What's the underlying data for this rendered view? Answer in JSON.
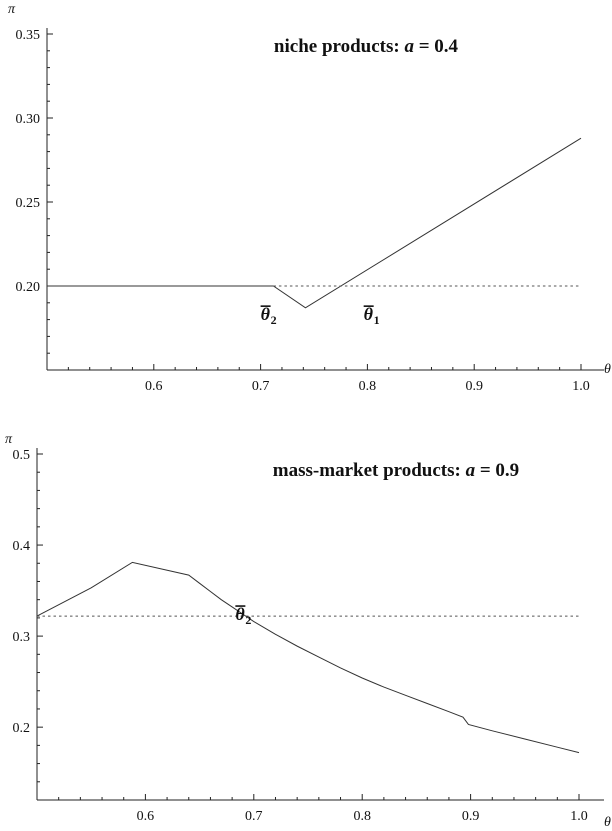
{
  "chart_data": [
    {
      "type": "line",
      "title": "niche products: a = 0.4",
      "title_prefix": "niche products: ",
      "title_var": "a",
      "title_suffix": " = 0.4",
      "xlabel": "θ",
      "ylabel": "π",
      "xlim": [
        0.5,
        1.0
      ],
      "ylim": [
        0.15,
        0.35
      ],
      "x_ticks": [
        "0.6",
        "0.7",
        "0.8",
        "0.9",
        "1.0"
      ],
      "y_ticks": [
        "0.20",
        "0.25",
        "0.30",
        "0.35"
      ],
      "grid": false,
      "series": [
        {
          "style": "solid",
          "x": [
            0.5,
            0.712,
            0.742,
            1.0
          ],
          "y": [
            0.2,
            0.2,
            0.187,
            0.288
          ]
        },
        {
          "style": "dotted",
          "x": [
            0.712,
            1.0
          ],
          "y": [
            0.2,
            0.2
          ]
        }
      ],
      "annotations": [
        {
          "symbol": "θ",
          "sub": "2",
          "overline": true,
          "x": 0.7,
          "y": 0.188
        },
        {
          "symbol": "θ",
          "sub": "1",
          "overline": true,
          "x": 0.7965,
          "y": 0.188
        }
      ]
    },
    {
      "type": "line",
      "title": "mass-market products: a = 0.9",
      "title_prefix": "mass-market products: ",
      "title_var": "a",
      "title_suffix": " = 0.9",
      "xlabel": "θ",
      "ylabel": "π",
      "xlim": [
        0.5,
        1.0
      ],
      "ylim": [
        0.12,
        0.5
      ],
      "x_ticks": [
        "0.6",
        "0.7",
        "0.8",
        "0.9",
        "1.0"
      ],
      "y_ticks": [
        "0.2",
        "0.3",
        "0.4",
        "0.5"
      ],
      "grid": false,
      "series": [
        {
          "style": "solid",
          "x": [
            0.5,
            0.55,
            0.588,
            0.64,
            0.65,
            0.66,
            0.67,
            0.68,
            0.69,
            0.7,
            0.72,
            0.74,
            0.76,
            0.78,
            0.8,
            0.82,
            0.84,
            0.86,
            0.88,
            0.893,
            0.898,
            0.92,
            0.95,
            0.98,
            1.0
          ],
          "y": [
            0.322,
            0.353,
            0.381,
            0.367,
            0.358,
            0.349,
            0.34,
            0.332,
            0.324,
            0.316,
            0.302,
            0.289,
            0.277,
            0.265,
            0.254,
            0.244,
            0.235,
            0.226,
            0.217,
            0.211,
            0.203,
            0.196,
            0.187,
            0.178,
            0.172
          ]
        },
        {
          "style": "dotted",
          "x": [
            0.5,
            1.0
          ],
          "y": [
            0.322,
            0.322
          ]
        }
      ],
      "annotations": [
        {
          "symbol": "θ",
          "sub": "2",
          "overline": true,
          "x": 0.683,
          "y": 0.333
        }
      ]
    }
  ]
}
